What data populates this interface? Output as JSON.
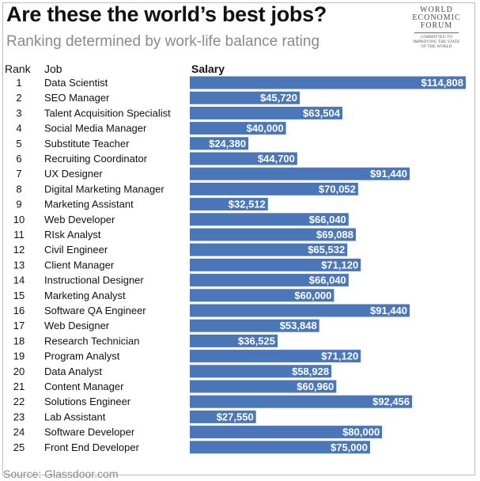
{
  "header": {
    "title": "Are these the world’s best jobs?",
    "subtitle": "Ranking determined by work-life balance rating"
  },
  "logo": {
    "line1": "WORLD",
    "line2": "ECONOMIC",
    "line3": "FORUM",
    "tagline1": "COMMITTED TO",
    "tagline2": "IMPROVING THE STATE",
    "tagline3": "OF THE WORLD"
  },
  "columns": {
    "rank": "Rank",
    "job": "Job",
    "salary": "Salary"
  },
  "source": "Source: Glassdoor.com",
  "colors": {
    "bar": "#4b76b8",
    "bar_label": "#ffffff"
  },
  "chart_data": {
    "type": "bar",
    "orientation": "horizontal",
    "title": "Are these the world’s best jobs?",
    "subtitle": "Ranking determined by work-life balance rating",
    "categories": [
      "Data Scientist",
      "SEO Manager",
      "Talent Acquisition Specialist",
      "Social Media Manager",
      "Substitute Teacher",
      "Recruiting Coordinator",
      "UX Designer",
      "Digital Marketing Manager",
      "Marketing Assistant",
      "Web Developer",
      "RIsk Analyst",
      "Civil Engineer",
      "Client Manager",
      "Instructional Designer",
      "Marketing Analyst",
      "Software QA Engineer",
      "Web Designer",
      "Research Technician",
      "Program Analyst",
      "Data Analyst",
      "Content Manager",
      "Solutions Engineer",
      "Lab Assistant",
      "Software Developer",
      "Front End Developer"
    ],
    "ranks": [
      1,
      2,
      3,
      4,
      5,
      6,
      7,
      8,
      9,
      10,
      11,
      12,
      13,
      14,
      15,
      16,
      17,
      18,
      19,
      20,
      21,
      22,
      23,
      24,
      25
    ],
    "values": [
      114808,
      45720,
      63504,
      40000,
      24380,
      44700,
      91440,
      70052,
      32512,
      66040,
      69088,
      65532,
      71120,
      66040,
      60000,
      91440,
      53848,
      36525,
      71120,
      58928,
      60960,
      92456,
      27550,
      80000,
      75000
    ],
    "value_labels": [
      "$114,808",
      "$45,720",
      "$63,504",
      "$40,000",
      "$24,380",
      "$44,700",
      "$91,440",
      "$70,052",
      "$32,512",
      "$66,040",
      "$69,088",
      "$65,532",
      "$71,120",
      "$66,040",
      "$60,000",
      "$91,440",
      "$53,848",
      "$36,525",
      "$71,120",
      "$58,928",
      "$60,960",
      "$92,456",
      "$27,550",
      "$80,000",
      "$75,000"
    ],
    "xlabel": "Salary",
    "xlim": [
      0,
      114808
    ],
    "grid": false,
    "legend": false
  }
}
